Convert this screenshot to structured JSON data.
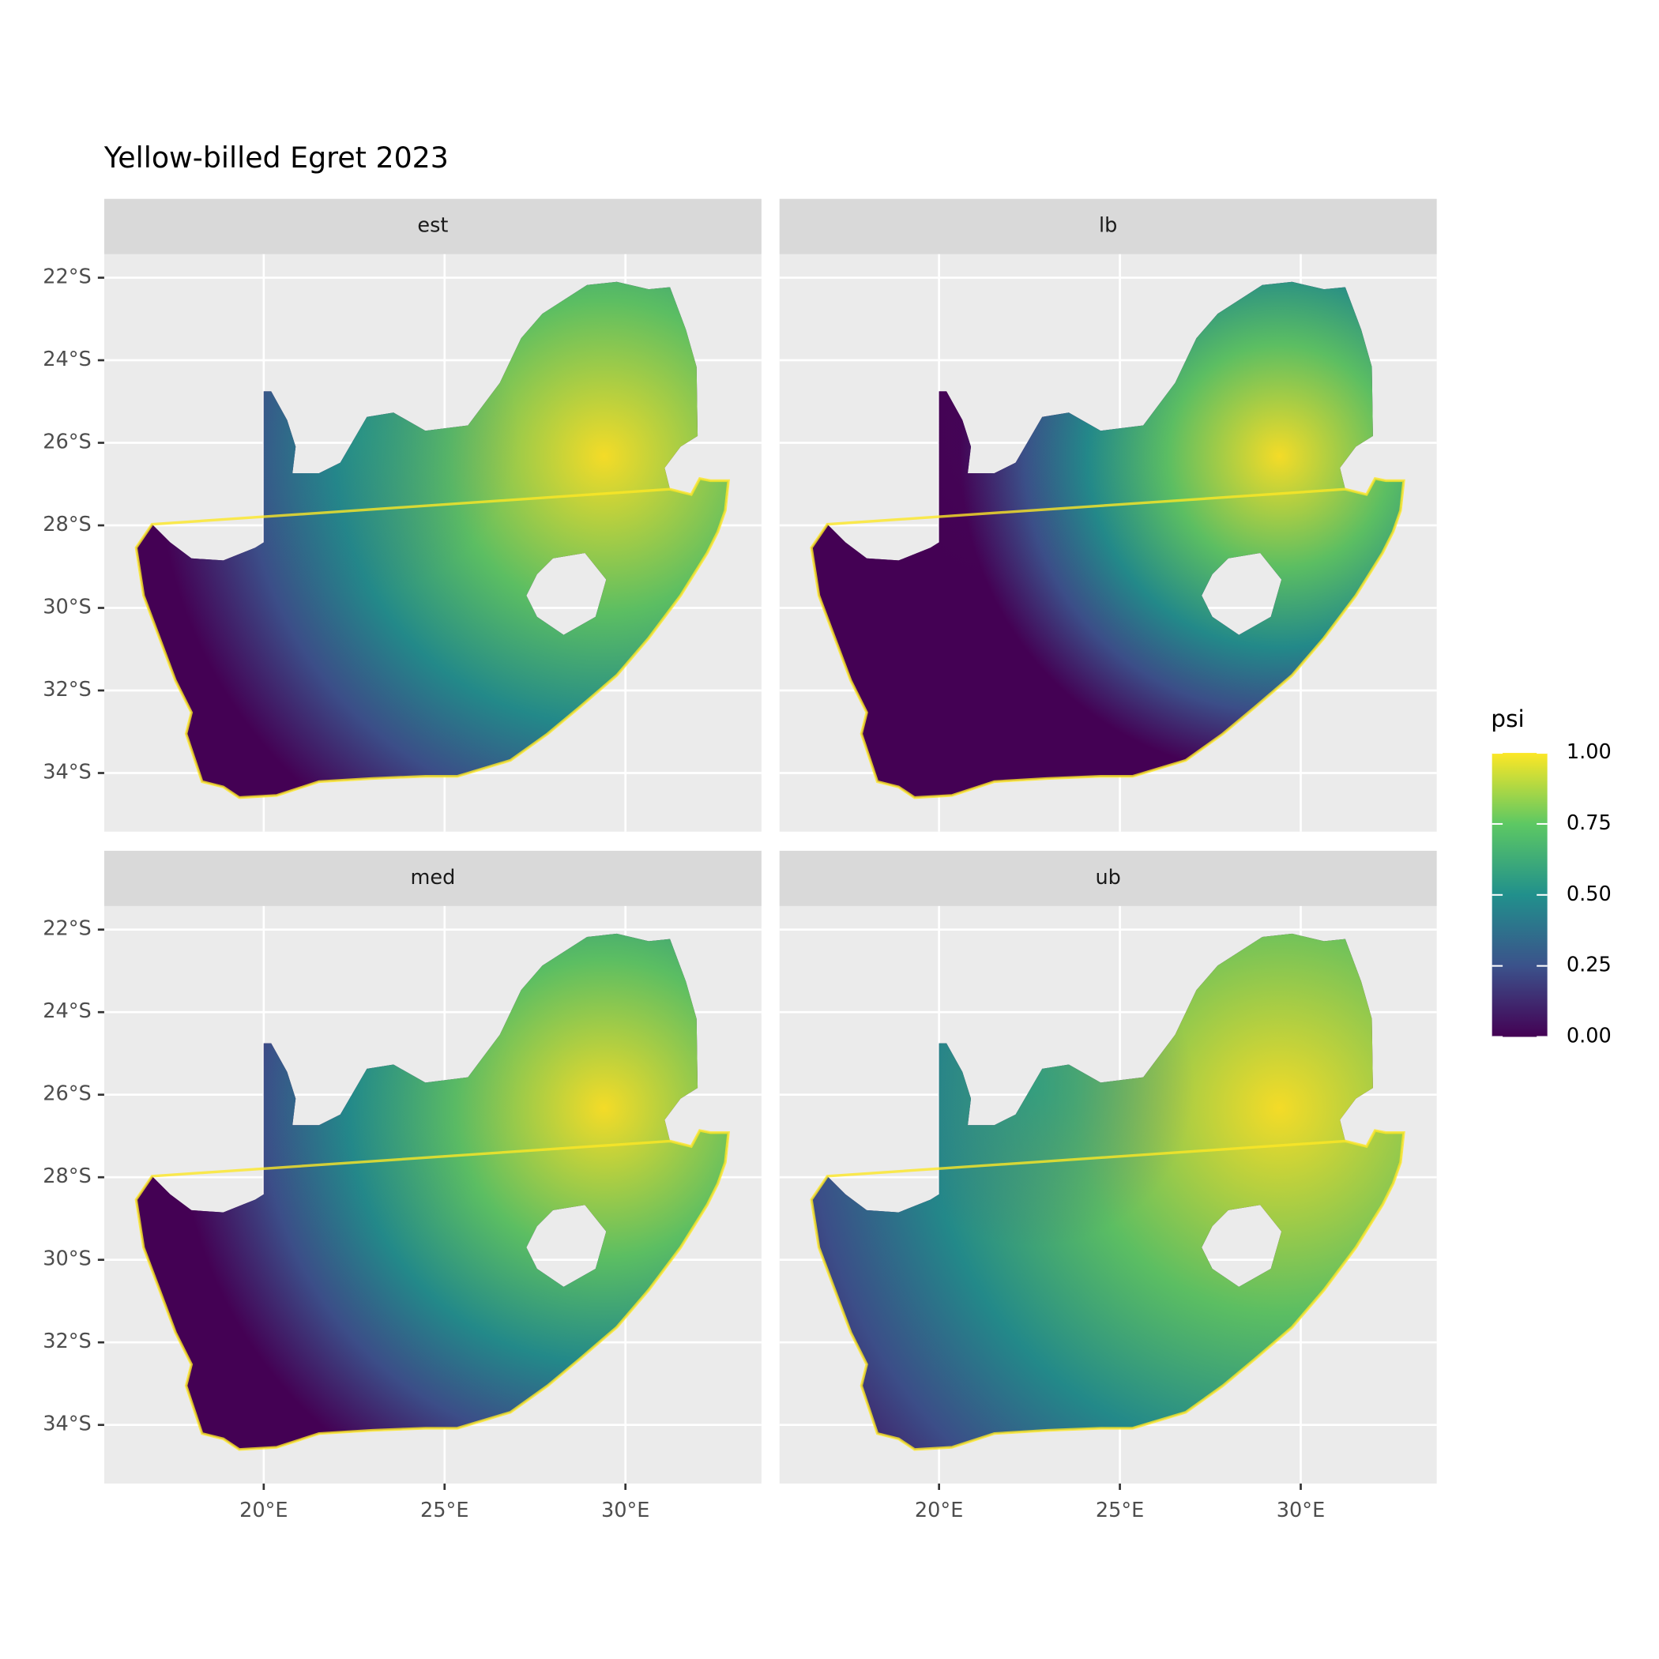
{
  "chart_data": {
    "type": "raster",
    "title": "Yellow-billed Egret 2023",
    "facets": [
      "est",
      "lb",
      "med",
      "ub"
    ],
    "xlim": [
      15.59,
      33.76
    ],
    "ylim": [
      -35.42,
      -21.43
    ],
    "xticks": [
      {
        "value": 20,
        "label": "20°E"
      },
      {
        "value": 25,
        "label": "25°E"
      },
      {
        "value": 30,
        "label": "30°E"
      }
    ],
    "yticks": [
      {
        "value": -22,
        "label": "22°S"
      },
      {
        "value": -24,
        "label": "24°S"
      },
      {
        "value": -26,
        "label": "26°S"
      },
      {
        "value": -28,
        "label": "28°S"
      },
      {
        "value": -30,
        "label": "30°S"
      },
      {
        "value": -32,
        "label": "32°S"
      },
      {
        "value": -34,
        "label": "34°S"
      }
    ],
    "grid": true,
    "legend": {
      "title": "psi",
      "limits": [
        0,
        1
      ],
      "ticks": [
        {
          "value": 0,
          "label": "0.00"
        },
        {
          "value": 0.25,
          "label": "0.25"
        },
        {
          "value": 0.5,
          "label": "0.50"
        },
        {
          "value": 0.75,
          "label": "0.75"
        },
        {
          "value": 1,
          "label": "1.00"
        }
      ],
      "colors": [
        "#440154",
        "#3b528b",
        "#21908c",
        "#5dc863",
        "#fde725"
      ]
    }
  }
}
